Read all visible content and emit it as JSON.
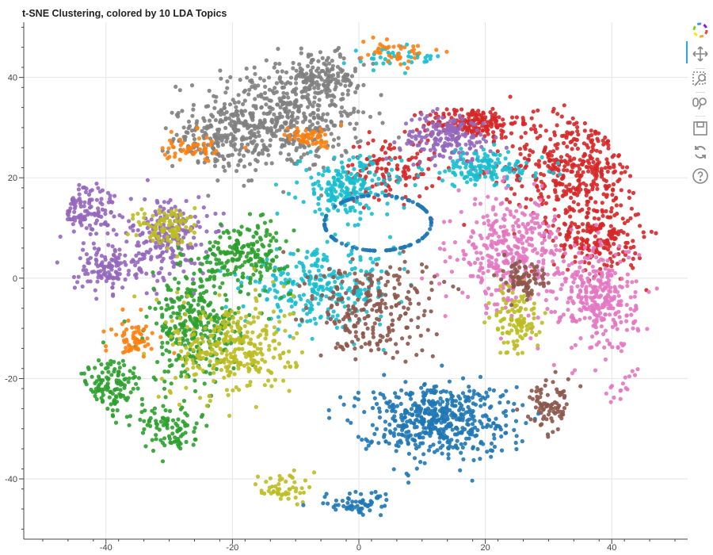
{
  "title": "t-SNE Clustering, colored by 10 LDA Topics",
  "chart_data": {
    "type": "scatter",
    "title": "t-SNE Clustering, colored by 10 LDA Topics",
    "xlabel": "",
    "ylabel": "",
    "xlim": [
      -53,
      52
    ],
    "ylim": [
      -52,
      51
    ],
    "x_ticks": [
      -40,
      -20,
      0,
      20,
      40
    ],
    "y_ticks": [
      40,
      20,
      0,
      -20,
      -40
    ],
    "x_tick_labels": [
      "-40",
      "-20",
      "0",
      "20",
      "40"
    ],
    "y_tick_labels": [
      "40",
      "20",
      "0",
      "-20",
      "-40"
    ],
    "grid": true,
    "legend": "none",
    "topic_colors": [
      "#1f77b4",
      "#ff7f0e",
      "#2ca02c",
      "#d62728",
      "#9467bd",
      "#8c564b",
      "#e377c2",
      "#7f7f7f",
      "#bcbd22",
      "#17becf"
    ],
    "clusters": [
      {
        "topic": 7,
        "center": [
          -12,
          32
        ],
        "spread": [
          11,
          9
        ],
        "n": 520
      },
      {
        "topic": 7,
        "center": [
          -22,
          28
        ],
        "spread": [
          6,
          5
        ],
        "n": 150
      },
      {
        "topic": 7,
        "center": [
          -6,
          40
        ],
        "spread": [
          5,
          4
        ],
        "n": 120
      },
      {
        "topic": 3,
        "center": [
          18,
          31
        ],
        "spread": [
          6,
          2.5
        ],
        "n": 180
      },
      {
        "topic": 3,
        "center": [
          34,
          22
        ],
        "spread": [
          9,
          9
        ],
        "n": 420
      },
      {
        "topic": 3,
        "center": [
          38,
          8
        ],
        "spread": [
          6,
          6
        ],
        "n": 200
      },
      {
        "topic": 3,
        "center": [
          5,
          22
        ],
        "spread": [
          6,
          5
        ],
        "n": 120
      },
      {
        "topic": 4,
        "center": [
          -44,
          14
        ],
        "spread": [
          5,
          5
        ],
        "n": 160
      },
      {
        "topic": 4,
        "center": [
          -30,
          8
        ],
        "spread": [
          5,
          7
        ],
        "n": 220
      },
      {
        "topic": 4,
        "center": [
          14,
          28
        ],
        "spread": [
          6,
          4
        ],
        "n": 180
      },
      {
        "topic": 4,
        "center": [
          -40,
          2
        ],
        "spread": [
          4,
          4
        ],
        "n": 120
      },
      {
        "topic": 9,
        "center": [
          -2,
          18
        ],
        "spread": [
          6,
          5
        ],
        "n": 200
      },
      {
        "topic": 9,
        "center": [
          20,
          22
        ],
        "spread": [
          8,
          3
        ],
        "n": 140
      },
      {
        "topic": 9,
        "center": [
          -6,
          -2
        ],
        "spread": [
          10,
          6
        ],
        "n": 280
      },
      {
        "topic": 9,
        "center": [
          6,
          44
        ],
        "spread": [
          6,
          2
        ],
        "n": 40
      },
      {
        "topic": 6,
        "center": [
          24,
          5
        ],
        "spread": [
          7,
          9
        ],
        "n": 360
      },
      {
        "topic": 6,
        "center": [
          38,
          -4
        ],
        "spread": [
          5,
          9
        ],
        "n": 300
      },
      {
        "topic": 6,
        "center": [
          44,
          -26
        ],
        "spread": [
          4,
          6
        ],
        "n": 90
      },
      {
        "topic": 2,
        "center": [
          -26,
          -10
        ],
        "spread": [
          6,
          9
        ],
        "n": 320
      },
      {
        "topic": 2,
        "center": [
          -40,
          -22
        ],
        "spread": [
          5,
          5
        ],
        "n": 160
      },
      {
        "topic": 2,
        "center": [
          -18,
          5
        ],
        "spread": [
          6,
          5
        ],
        "n": 200
      },
      {
        "topic": 2,
        "center": [
          -30,
          -30
        ],
        "spread": [
          4,
          4
        ],
        "n": 90
      },
      {
        "topic": 8,
        "center": [
          -20,
          -14
        ],
        "spread": [
          8,
          8
        ],
        "n": 320
      },
      {
        "topic": 8,
        "center": [
          -30,
          10
        ],
        "spread": [
          4,
          4
        ],
        "n": 100
      },
      {
        "topic": 8,
        "center": [
          25,
          -8
        ],
        "spread": [
          3,
          6
        ],
        "n": 110
      },
      {
        "topic": 8,
        "center": [
          -12,
          -42
        ],
        "spread": [
          3,
          3
        ],
        "n": 50
      },
      {
        "topic": 0,
        "center": [
          12,
          -28
        ],
        "spread": [
          10,
          6
        ],
        "n": 520
      },
      {
        "topic": 0,
        "center": [
          0,
          -45
        ],
        "spread": [
          5,
          2
        ],
        "n": 60
      },
      {
        "topic": 0,
        "center": [
          3,
          11
        ],
        "ring": 6.5,
        "n": 110
      },
      {
        "topic": 5,
        "center": [
          2,
          -6
        ],
        "spread": [
          9,
          8
        ],
        "n": 240
      },
      {
        "topic": 5,
        "center": [
          30,
          -25
        ],
        "spread": [
          3,
          5
        ],
        "n": 80
      },
      {
        "topic": 5,
        "center": [
          26,
          0
        ],
        "spread": [
          3,
          3
        ],
        "n": 80
      },
      {
        "topic": 1,
        "center": [
          -36,
          -12
        ],
        "spread": [
          3,
          3
        ],
        "n": 60
      },
      {
        "topic": 1,
        "center": [
          6,
          45
        ],
        "spread": [
          5,
          2
        ],
        "n": 40
      },
      {
        "topic": 1,
        "center": [
          -8,
          28
        ],
        "spread": [
          3,
          2
        ],
        "n": 50
      },
      {
        "topic": 1,
        "center": [
          -26,
          26
        ],
        "spread": [
          4,
          2
        ],
        "n": 50
      }
    ]
  },
  "toolbar": {
    "tools": [
      "bokeh-logo-icon",
      "pan-icon",
      "box-zoom-icon",
      "wheel-zoom-icon",
      "save-icon",
      "reset-icon",
      "help-icon"
    ]
  }
}
